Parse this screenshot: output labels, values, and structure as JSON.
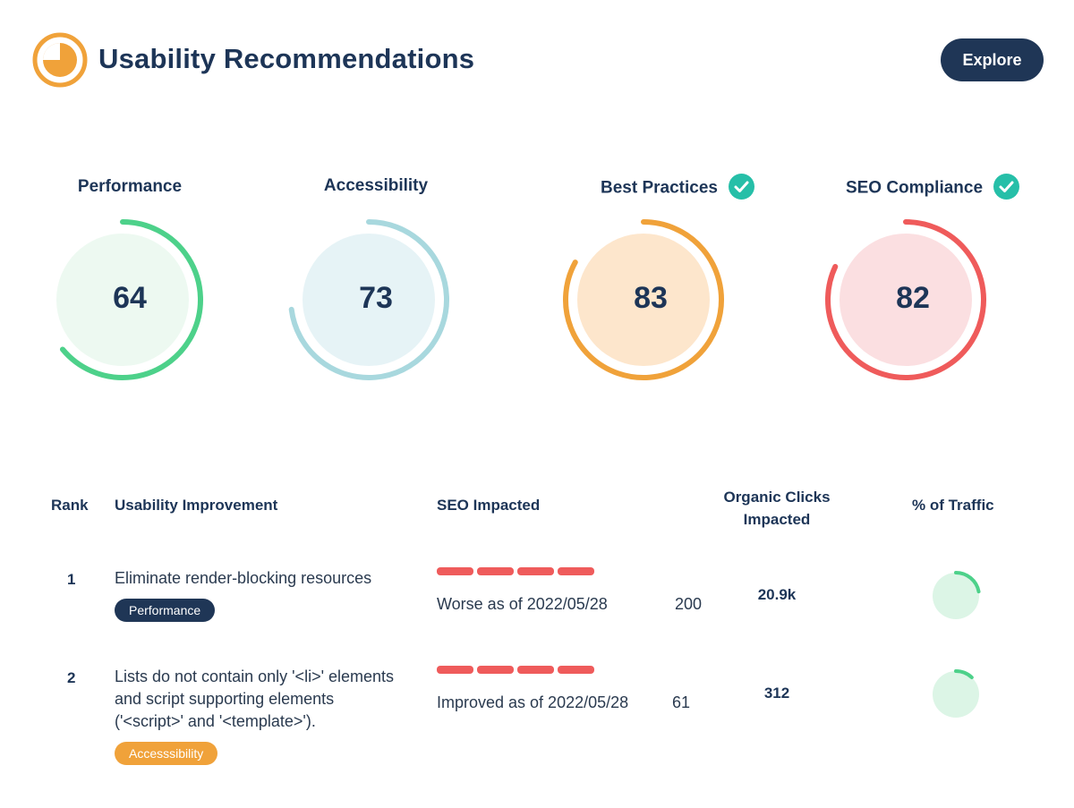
{
  "header": {
    "title": "Usability Recommendations",
    "explore_label": "Explore",
    "logo_icon": "clock-pie-icon"
  },
  "colors": {
    "navy": "#1f3656",
    "green": "#4dd18a",
    "teal": "#a8d8de",
    "orange": "#f0a23a",
    "red": "#ef5b5b",
    "check_teal": "#26bfa8"
  },
  "gauges": [
    {
      "label": "Performance",
      "value": "64",
      "score": 64,
      "checked": false,
      "ring_color": "#4dd18a",
      "fill_color": "#edf9f1"
    },
    {
      "label": "Accessibility",
      "value": "73",
      "score": 73,
      "checked": false,
      "ring_color": "#a8d8de",
      "fill_color": "#e6f3f6"
    },
    {
      "label": "Best Practices",
      "value": "83",
      "score": 83,
      "checked": true,
      "ring_color": "#f0a23a",
      "fill_color": "#fde6cc"
    },
    {
      "label": "SEO Compliance",
      "value": "82",
      "score": 82,
      "checked": true,
      "ring_color": "#ef5b5b",
      "fill_color": "#fbdfe1"
    }
  ],
  "table": {
    "headers": {
      "rank": "Rank",
      "improvement": "Usability Improvement",
      "seo": "SEO Impacted",
      "clicks_line1": "Organic Clicks",
      "clicks_line2": "Impacted",
      "traffic": "% of Traffic"
    },
    "rows": [
      {
        "rank": "1",
        "improvement": "Eliminate render-blocking resources",
        "tag": "Performance",
        "seo_status": "Worse as of 2022/05/28",
        "seo_value": "200",
        "clicks": "20.9k",
        "traffic_fraction": 0.22
      },
      {
        "rank": "2",
        "improvement_lines": [
          "Lists do not contain only '<li>' elements",
          "and script supporting elements",
          "('<script>' and '<template>')."
        ],
        "tag": "Accesssibility",
        "seo_status": "Improved as of 2022/05/28",
        "seo_value": "61",
        "clicks": "312",
        "traffic_fraction": 0.12
      }
    ]
  }
}
